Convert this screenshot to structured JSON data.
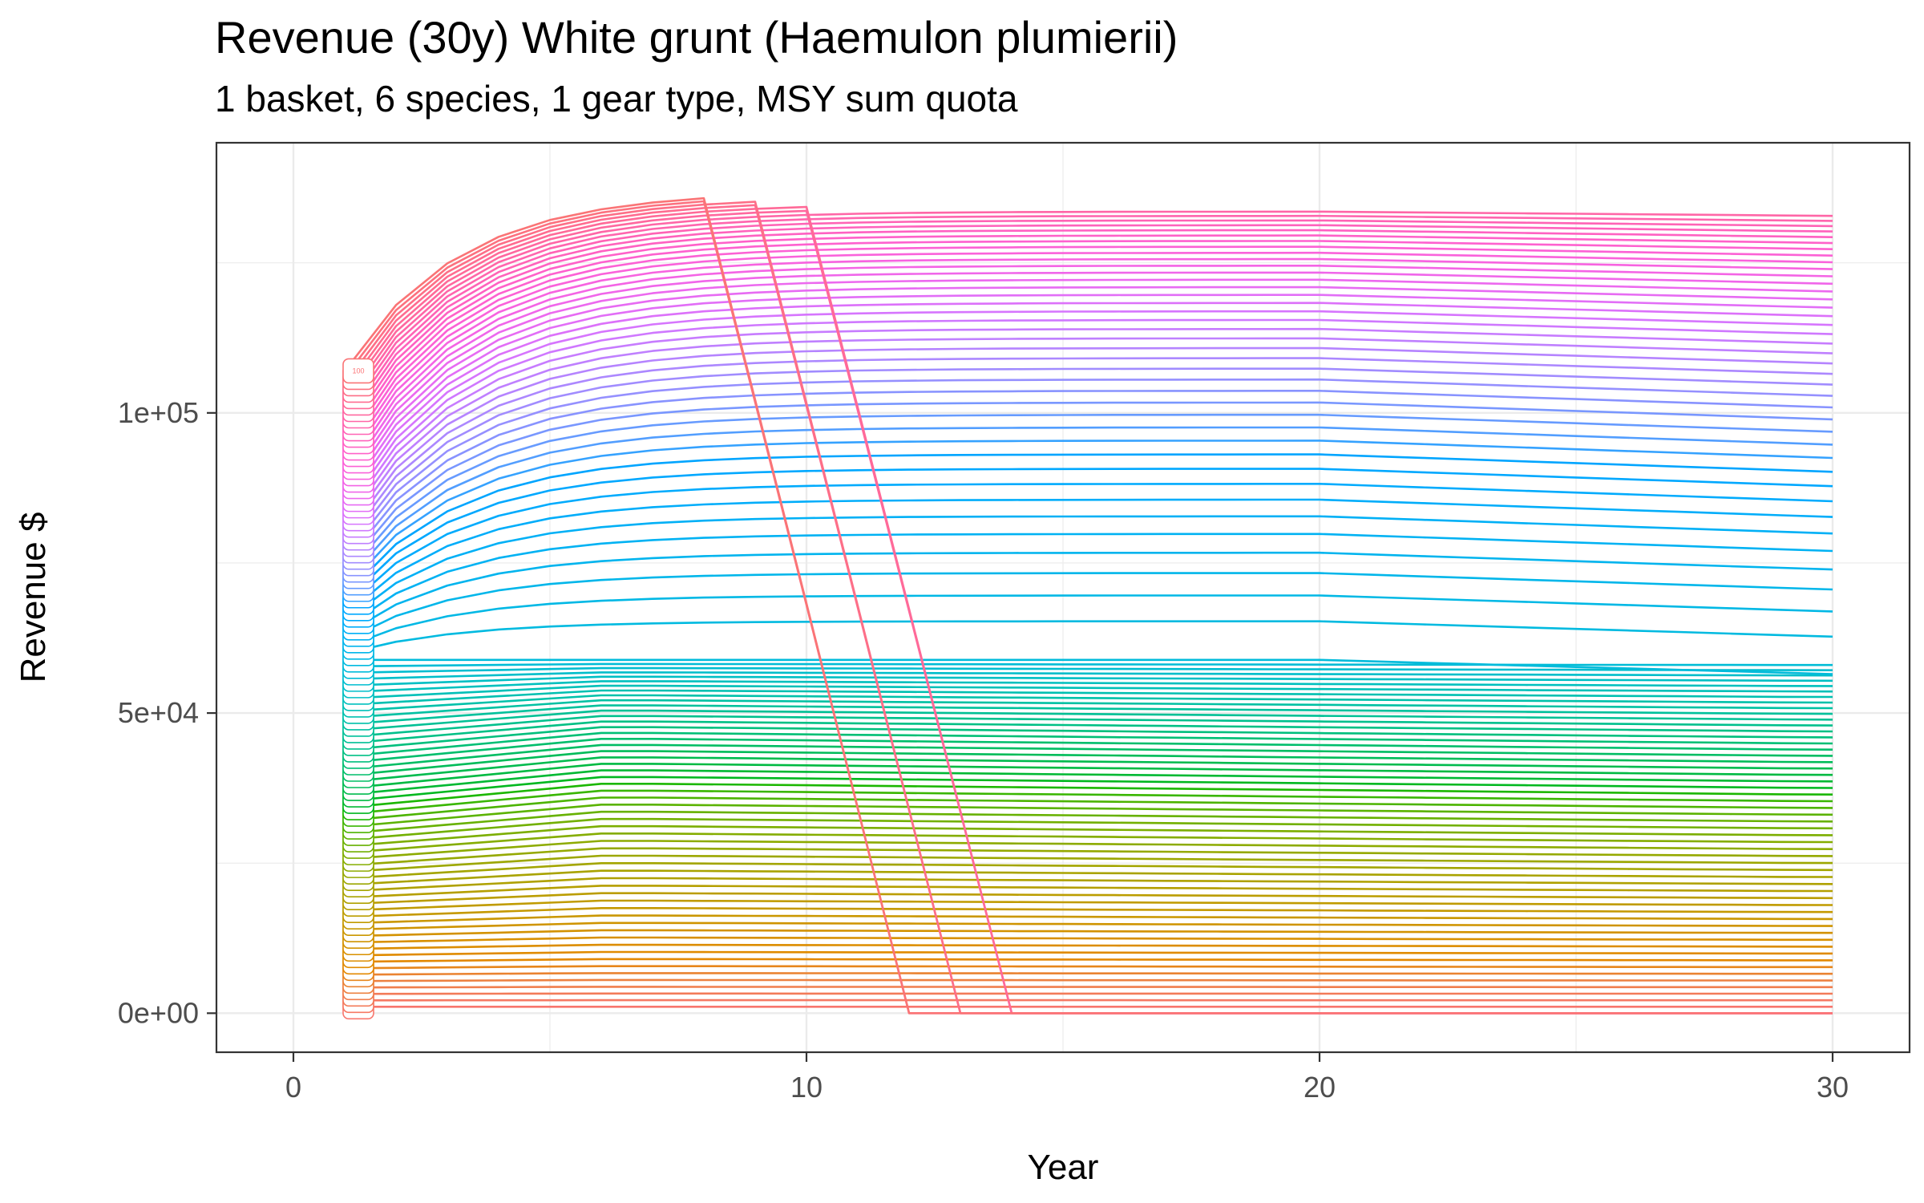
{
  "chart_data": {
    "type": "line",
    "title": "Revenue (30y) White grunt (Haemulon plumierii)",
    "subtitle": "1 basket, 6 species, 1 gear type, MSY sum quota",
    "xlabel": "Year",
    "ylabel": "Revenue $",
    "xlim": [
      -1.5,
      31.5
    ],
    "ylim": [
      -6500,
      145000
    ],
    "x_ticks": [
      0,
      10,
      20,
      30
    ],
    "x_tick_labels": [
      "0",
      "10",
      "20",
      "30"
    ],
    "y_ticks": [
      0,
      50000,
      100000
    ],
    "y_tick_labels": [
      "0e+00",
      "5e+04",
      "1e+05"
    ],
    "grid": true,
    "legend": "none",
    "x": [
      1,
      2,
      3,
      4,
      5,
      6,
      7,
      8,
      9,
      10,
      11,
      12,
      13,
      14,
      15,
      16,
      17,
      18,
      19,
      20,
      21,
      22,
      23,
      24,
      25,
      26,
      27,
      28,
      29,
      30
    ],
    "series_count": 100,
    "series_description": "Each series is one effort level (1 to 100); start value rises with level. Lower levels stay flat near their start; upper levels rise to a plateau near 1.37e+05 then collapse to 0 in a year that comes earlier as effort increases.",
    "series_start_max": 107000,
    "series_plateau_max": 137000,
    "visible_end_label": "100",
    "colors": {
      "palette_start": "#F8766D",
      "palette_mid_green": "#00BA38",
      "palette_mid_blue": "#00A9FF",
      "palette_end": "#FF61C3",
      "axis": "#333333",
      "grid": "#ebebeb"
    }
  }
}
